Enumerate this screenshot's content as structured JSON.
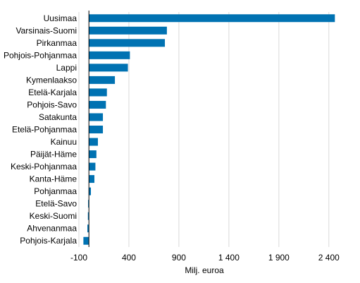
{
  "chart_data": {
    "type": "bar",
    "orientation": "horizontal",
    "categories": [
      "Uusimaa",
      "Varsinais-Suomi",
      "Pirkanmaa",
      "Pohjois-Pohjanmaa",
      "Lappi",
      "Kymenlaakso",
      "Etelä-Karjala",
      "Pohjois-Savo",
      "Satakunta",
      "Etelä-Pohjanmaa",
      "Kainuu",
      "Päijät-Häme",
      "Keski-Pohjanmaa",
      "Kanta-Häme",
      "Pohjanmaa",
      "Etelä-Savo",
      "Keski-Suomi",
      "Ahvenanmaa",
      "Pohjois-Karjala"
    ],
    "values": [
      2460,
      780,
      760,
      410,
      390,
      260,
      180,
      170,
      140,
      140,
      90,
      75,
      65,
      55,
      20,
      -8,
      -10,
      -15,
      -55
    ],
    "xlabel": "Milj. euroa",
    "ylabel": "",
    "title": "",
    "xlim": [
      -100,
      2500
    ],
    "xticks": [
      -100,
      400,
      900,
      1400,
      1900,
      2400
    ],
    "xtick_labels": [
      "-100",
      "400",
      "900",
      "1 400",
      "1 900",
      "2 400"
    ],
    "grid": "vertical",
    "bar_color": "#0072b2"
  }
}
